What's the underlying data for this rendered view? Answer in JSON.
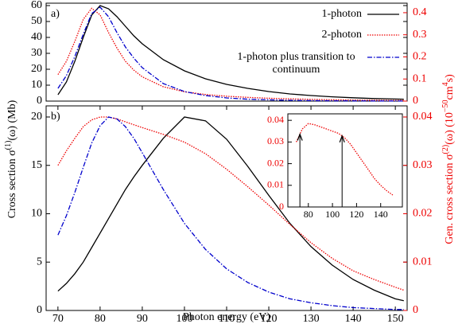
{
  "chart_data": [
    {
      "type": "line",
      "label": "a)",
      "x": [
        70,
        72,
        74,
        76,
        78,
        80,
        82,
        84,
        86,
        88,
        90,
        95,
        100,
        105,
        110,
        115,
        120,
        125,
        130,
        135,
        140,
        145,
        150,
        152
      ],
      "xlim": [
        67.2,
        152.8
      ],
      "ylim": [
        0,
        61.5
      ],
      "yticks": [
        0,
        10,
        20,
        30,
        40,
        50,
        60
      ],
      "y2lim": [
        0,
        0.443
      ],
      "y2ticks": [
        0,
        0.1,
        0.2,
        0.3,
        0.4
      ],
      "legend": "upper right",
      "series": [
        {
          "name": "1-photon",
          "color": "#000000",
          "dash": "none",
          "values": [
            4,
            12,
            25,
            40,
            54,
            60,
            58,
            53,
            47,
            41,
            36,
            26,
            19,
            14,
            10.5,
            8,
            6,
            4.5,
            3.5,
            2.7,
            2.1,
            1.6,
            1.3,
            1.2
          ]
        },
        {
          "name": "2-photon",
          "color": "#ee0000",
          "dash": "1.5,1.5",
          "axis": "y2",
          "values": [
            0.12,
            0.18,
            0.27,
            0.37,
            0.42,
            0.39,
            0.31,
            0.24,
            0.18,
            0.14,
            0.11,
            0.065,
            0.042,
            0.03,
            0.022,
            0.017,
            0.013,
            0.01,
            0.008,
            0.006,
            0.005,
            0.004,
            0.003,
            0.003
          ]
        },
        {
          "name": "1-photon plus transition to continuum",
          "color": "#0000cc",
          "dash": "6,2,1.5,2",
          "values": [
            8,
            16,
            28,
            42,
            55,
            59,
            53,
            43,
            34,
            27,
            21,
            11,
            6,
            3.5,
            2,
            1.2,
            0.8,
            0.5,
            0.3,
            0.2,
            0.15,
            0.1,
            0.08,
            0.07
          ]
        }
      ]
    },
    {
      "type": "line",
      "label": "b)",
      "x": [
        70,
        72,
        74,
        76,
        78,
        80,
        82,
        84,
        86,
        88,
        90,
        95,
        100,
        105,
        110,
        115,
        120,
        125,
        130,
        135,
        140,
        145,
        150,
        152
      ],
      "xlim": [
        67.2,
        152.8
      ],
      "xticks": [
        70,
        80,
        90,
        100,
        110,
        120,
        130,
        140,
        150
      ],
      "xlabel": "Photon energy (eV)",
      "ylim": [
        0,
        21.15
      ],
      "yticks": [
        0,
        5,
        10,
        15,
        20
      ],
      "y2lim": [
        0,
        0.0423
      ],
      "y2ticks": [
        0,
        0.01,
        0.02,
        0.03,
        0.04
      ],
      "ylabel_parts": [
        "Cross section σ",
        "(1)",
        "(ω)  (Mb)"
      ],
      "y2label_parts": [
        "Gen. cross section σ",
        "(2)",
        "(ω)  (10",
        "−50",
        "cm",
        "4",
        "s)"
      ],
      "series": [
        {
          "color": "#000000",
          "dash": "none",
          "values": [
            2,
            2.8,
            3.8,
            5,
            6.5,
            8,
            9.5,
            11,
            12.5,
            13.8,
            15,
            17.8,
            20,
            19.6,
            17.7,
            14.9,
            11.9,
            9,
            6.6,
            4.7,
            3.2,
            2.1,
            1.2,
            1.0
          ]
        },
        {
          "color": "#ee0000",
          "dash": "1.5,1.5",
          "axis": "y2",
          "values": [
            0.03,
            0.033,
            0.0356,
            0.038,
            0.0394,
            0.04,
            0.04,
            0.0396,
            0.039,
            0.0384,
            0.0378,
            0.0364,
            0.0348,
            0.0324,
            0.0292,
            0.0256,
            0.0218,
            0.0178,
            0.014,
            0.0108,
            0.0082,
            0.0064,
            0.0048,
            0.0042
          ]
        },
        {
          "color": "#0000cc",
          "dash": "6,2,1.5,2",
          "values": [
            7.8,
            9.8,
            12.2,
            14.8,
            17.3,
            19.1,
            20,
            19.8,
            19,
            17.8,
            16.3,
            12.5,
            9,
            6.3,
            4.3,
            2.9,
            1.9,
            1.2,
            0.8,
            0.5,
            0.3,
            0.2,
            0.1,
            0.1
          ]
        }
      ]
    },
    {
      "type": "line",
      "x": [
        70,
        75,
        80,
        85,
        90,
        95,
        100,
        105,
        110,
        115,
        120,
        125,
        130,
        135,
        140,
        145,
        150
      ],
      "xlim": [
        63,
        158
      ],
      "xticks": [
        80,
        100,
        120,
        140
      ],
      "ylim": [
        0,
        0.043
      ],
      "yticks": [
        0,
        0.01,
        0.02,
        0.03,
        0.04
      ],
      "arrows_x": [
        73,
        108
      ],
      "series": [
        {
          "color": "#ee0000",
          "dash": "1.5,1.5",
          "values": [
            0.03,
            0.036,
            0.0385,
            0.038,
            0.037,
            0.036,
            0.035,
            0.034,
            0.032,
            0.029,
            0.025,
            0.021,
            0.017,
            0.013,
            0.01,
            0.0075,
            0.0055
          ]
        }
      ]
    }
  ]
}
